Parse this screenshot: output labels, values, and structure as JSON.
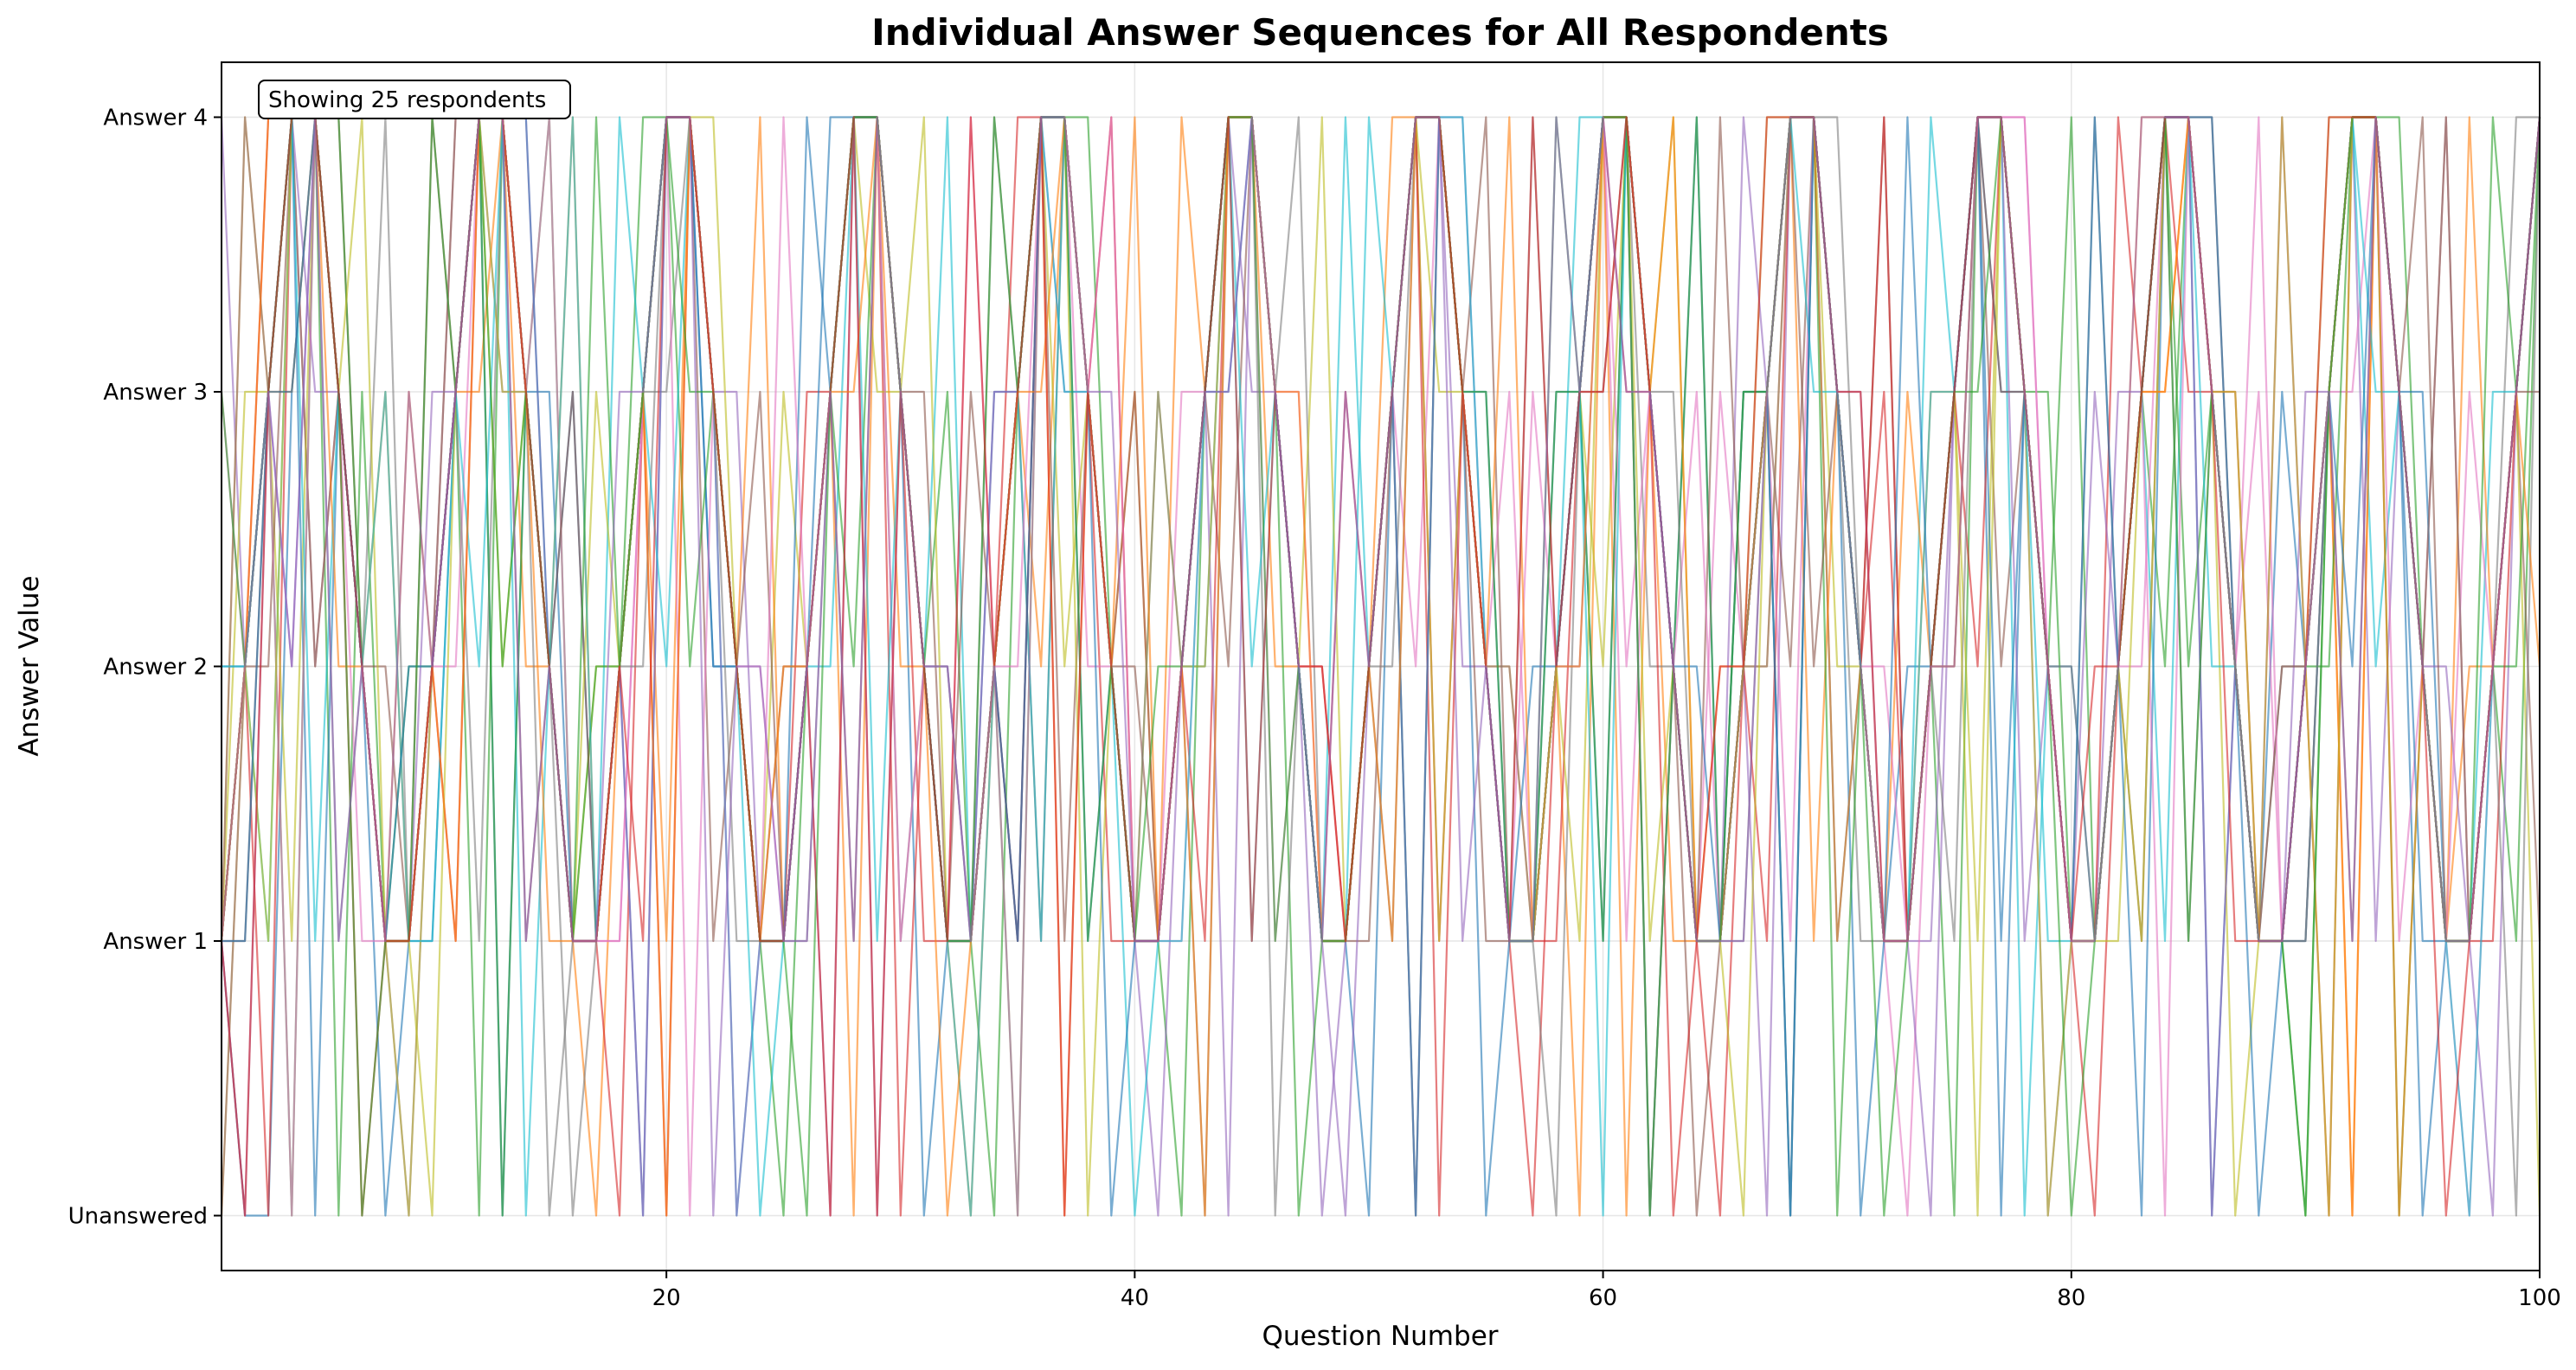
{
  "chart_data": {
    "type": "line",
    "title": "Individual Answer Sequences for All Respondents",
    "xlabel": "Question Number",
    "ylabel": "Answer Value",
    "xlim": [
      1,
      100
    ],
    "ylim": [
      -0.2,
      4.2
    ],
    "x_ticks": [
      20,
      40,
      60,
      80,
      100
    ],
    "y_ticks": [
      {
        "value": 0,
        "label": "Unanswered"
      },
      {
        "value": 1,
        "label": "Answer 1"
      },
      {
        "value": 2,
        "label": "Answer 2"
      },
      {
        "value": 3,
        "label": "Answer 3"
      },
      {
        "value": 4,
        "label": "Answer 4"
      }
    ],
    "grid": true,
    "annotation": "Showing 25 respondents",
    "series_count": 25,
    "shared_pattern": [
      1,
      2,
      3,
      4,
      4,
      3,
      2,
      1,
      1,
      2,
      3,
      4,
      4,
      3,
      2,
      1,
      1,
      2,
      3,
      4,
      4,
      3,
      2,
      1,
      1,
      2,
      3,
      4,
      4,
      3,
      2,
      1,
      1,
      2,
      3,
      4,
      4,
      3,
      2,
      1,
      1,
      2,
      3,
      4,
      4,
      3,
      2,
      1,
      1,
      2,
      3,
      4,
      4,
      3,
      2,
      1,
      1,
      2,
      3,
      4,
      4,
      3,
      2,
      1,
      1,
      2,
      3,
      4,
      4,
      3,
      2,
      1,
      1,
      2,
      3,
      4,
      4,
      3,
      2,
      1,
      1,
      2,
      3,
      4,
      4,
      3,
      2,
      1,
      1,
      2,
      3,
      4,
      4,
      3,
      2,
      1,
      1,
      2,
      3,
      4
    ],
    "series_overrides": [
      {
        "x": [
          2,
          3,
          4,
          8,
          10,
          13,
          16,
          22,
          31,
          35,
          43,
          50,
          55,
          60,
          64,
          70,
          73,
          77,
          80,
          86,
          89,
          95
        ],
        "y": [
          0,
          0,
          3,
          0,
          1,
          0,
          3,
          2,
          0,
          1,
          2,
          0,
          3,
          1,
          4,
          1,
          2,
          0,
          2,
          0,
          3,
          0
        ]
      },
      {
        "x": [
          1,
          4,
          5,
          9,
          14,
          17,
          21,
          28,
          33,
          36,
          40,
          46,
          51,
          56,
          59,
          63,
          67,
          71,
          74,
          78,
          83,
          88,
          92,
          97
        ],
        "y": [
          0,
          3,
          4,
          3,
          2,
          0,
          4,
          0,
          1,
          2,
          3,
          3,
          4,
          2,
          0,
          1,
          2,
          2,
          3,
          3,
          4,
          1,
          0,
          2
        ]
      },
      {
        "x": [
          2,
          6,
          7,
          12,
          15,
          19,
          24,
          29,
          34,
          38,
          42,
          47,
          52,
          58,
          62,
          66,
          69,
          75,
          79,
          84,
          90,
          94,
          99
        ],
        "y": [
          2,
          0,
          3,
          0,
          4,
          4,
          1,
          4,
          0,
          4,
          0,
          2,
          0,
          4,
          0,
          3,
          4,
          0,
          3,
          2,
          0,
          4,
          1
        ]
      },
      {
        "x": [
          3,
          5,
          8,
          11,
          18,
          20,
          26,
          30,
          35,
          39,
          44,
          49,
          53,
          57,
          61,
          65,
          68,
          72,
          76,
          81,
          85,
          91,
          96
        ],
        "y": [
          0,
          2,
          1,
          4,
          0,
          0,
          3,
          0,
          4,
          1,
          4,
          3,
          1,
          0,
          3,
          0,
          0,
          3,
          4,
          0,
          3,
          0,
          4
        ]
      },
      {
        "x": [
          1,
          4,
          9,
          13,
          17,
          23,
          27,
          32,
          37,
          41,
          45,
          48,
          54,
          59,
          63,
          67,
          70,
          74,
          79,
          82,
          87,
          93,
          98
        ],
        "y": [
          4,
          2,
          0,
          3,
          1,
          3,
          0,
          2,
          3,
          0,
          3,
          0,
          2,
          3,
          2,
          0,
          3,
          1,
          0,
          3,
          2,
          1,
          0
        ]
      },
      {
        "x": [
          2,
          6,
          10,
          14,
          19,
          22,
          25,
          31,
          36,
          40,
          44,
          50,
          55,
          58,
          64,
          68,
          72,
          77,
          80,
          86,
          90,
          95,
          100
        ],
        "y": [
          1,
          4,
          4,
          1,
          3,
          1,
          2,
          3,
          1,
          3,
          2,
          1,
          4,
          2,
          0,
          2,
          4,
          2,
          1,
          4,
          1,
          2,
          1
        ]
      },
      {
        "x": [
          3,
          7,
          11,
          15,
          18,
          24,
          28,
          33,
          38,
          42,
          46,
          52,
          56,
          61,
          65,
          69,
          73,
          78,
          83,
          88,
          92,
          97
        ],
        "y": [
          3,
          1,
          2,
          4,
          1,
          2,
          4,
          4,
          2,
          1,
          1,
          2,
          3,
          1,
          3,
          4,
          0,
          4,
          2,
          3,
          3,
          0
        ]
      },
      {
        "x": [
          1,
          5,
          8,
          12,
          16,
          20,
          26,
          30,
          34,
          39,
          43,
          47,
          51,
          57,
          62,
          66,
          71,
          75,
          81,
          85,
          89,
          94,
          99
        ],
        "y": [
          0,
          2,
          4,
          1,
          0,
          3,
          1,
          1,
          4,
          2,
          0,
          4,
          2,
          4,
          2,
          1,
          1,
          2,
          4,
          1,
          2,
          3,
          4
        ]
      },
      {
        "x": [
          2,
          4,
          9,
          13,
          17,
          21,
          25,
          29,
          35,
          37,
          41,
          48,
          53,
          60,
          63,
          67,
          70,
          76,
          82,
          87,
          91,
          96,
          100
        ],
        "y": [
          3,
          1,
          0,
          2,
          2,
          4,
          3,
          3,
          0,
          2,
          3,
          1,
          1,
          2,
          4,
          4,
          2,
          1,
          1,
          0,
          4,
          1,
          0
        ]
      },
      {
        "x": [
          3,
          6,
          10,
          14,
          18,
          23,
          27,
          32,
          36,
          40,
          45,
          49,
          54,
          59,
          64,
          68,
          74,
          78,
          84,
          89,
          93,
          98
        ],
        "y": [
          1,
          3,
          1,
          0,
          4,
          0,
          2,
          4,
          1,
          0,
          1,
          4,
          3,
          4,
          1,
          0,
          4,
          0,
          1,
          4,
          2,
          3
        ]
      },
      {
        "x": [
          1,
          5,
          7,
          11,
          15,
          19,
          22,
          26,
          31,
          34,
          38,
          44,
          50,
          55,
          58,
          62,
          66,
          71,
          77,
          83,
          86,
          90,
          95
        ],
        "y": [
          2,
          0,
          2,
          3,
          3,
          0,
          2,
          4,
          2,
          3,
          1,
          3,
          2,
          0,
          3,
          3,
          3,
          0,
          3,
          0,
          4,
          1,
          3
        ]
      },
      {
        "x": [
          2,
          8,
          12,
          16,
          20,
          24,
          30,
          33,
          37,
          42,
          46,
          52,
          57,
          61,
          65,
          69,
          73,
          79,
          84,
          88,
          92,
          97
        ],
        "y": [
          4,
          3,
          3,
          4,
          1,
          4,
          2,
          0,
          0,
          4,
          2,
          4,
          1,
          0,
          2,
          1,
          3,
          2,
          3,
          1,
          0,
          4
        ]
      },
      {
        "x": [
          4,
          6,
          9,
          13,
          17,
          21,
          25,
          28,
          32,
          36,
          41,
          47,
          51,
          56,
          60,
          64,
          70,
          75,
          80,
          85,
          91,
          94,
          99
        ],
        "y": [
          0,
          4,
          2,
          0,
          2,
          2,
          0,
          2,
          3,
          4,
          1,
          0,
          3,
          1,
          1,
          4,
          0,
          3,
          4,
          2,
          2,
          0,
          2
        ]
      },
      {
        "x": [
          1,
          3,
          7,
          11,
          14,
          18,
          22,
          27,
          31,
          35,
          39,
          43,
          48,
          53,
          58,
          63,
          67,
          72,
          76,
          82,
          87,
          93,
          98
        ],
        "y": [
          1,
          4,
          0,
          1,
          3,
          2,
          3,
          0,
          1,
          1,
          4,
          1,
          2,
          0,
          1,
          0,
          1,
          4,
          2,
          4,
          3,
          4,
          1
        ]
      },
      {
        "x": [
          2,
          5,
          10,
          15,
          19,
          23,
          26,
          29,
          34,
          38,
          44,
          49,
          54,
          59,
          62,
          66,
          71,
          74,
          78,
          81,
          86,
          90,
          96
        ],
        "y": [
          0,
          3,
          3,
          2,
          0,
          0,
          1,
          0,
          3,
          3,
          0,
          0,
          4,
          2,
          0,
          4,
          3,
          0,
          1,
          3,
          0,
          3,
          2
        ]
      },
      {
        "x": [
          3,
          8,
          12,
          16,
          20,
          24,
          28,
          33,
          37,
          40,
          45,
          50,
          55,
          60,
          65,
          69,
          73,
          77,
          83,
          89,
          92,
          95,
          100
        ],
        "y": [
          2,
          2,
          4,
          3,
          4,
          3,
          1,
          3,
          1,
          2,
          4,
          2,
          1,
          3,
          4,
          2,
          1,
          3,
          1,
          2,
          1,
          4,
          3
        ]
      },
      {
        "x": [
          1,
          4,
          9,
          14,
          18,
          21,
          25,
          30,
          35,
          39,
          42,
          47,
          52,
          57,
          61,
          64,
          68,
          72,
          78,
          84,
          88,
          94,
          97
        ],
        "y": [
          3,
          0,
          1,
          4,
          1,
          0,
          4,
          1,
          2,
          4,
          3,
          3,
          0,
          3,
          2,
          3,
          1,
          2,
          4,
          0,
          4,
          1,
          3
        ]
      },
      {
        "x": [
          2,
          6,
          11,
          15,
          19,
          23,
          27,
          32,
          36,
          41,
          46,
          51,
          56,
          58,
          63,
          67,
          70,
          75,
          80,
          85,
          90,
          96,
          99
        ],
        "y": [
          4,
          1,
          4,
          0,
          2,
          1,
          3,
          2,
          4,
          3,
          0,
          1,
          2,
          0,
          3,
          2,
          4,
          1,
          2,
          4,
          1,
          4,
          0
        ]
      },
      {
        "x": [
          3,
          7,
          10,
          13,
          17,
          22,
          26,
          31,
          34,
          38,
          43,
          48,
          53,
          59,
          62,
          66,
          71,
          76,
          79,
          83,
          87,
          91,
          98
        ],
        "y": [
          1,
          4,
          0,
          3,
          3,
          4,
          2,
          4,
          2,
          0,
          2,
          4,
          3,
          1,
          1,
          0,
          2,
          0,
          0,
          1,
          3,
          0,
          2
        ]
      },
      {
        "x": [
          1,
          5,
          8,
          12,
          16,
          20,
          24,
          29,
          33,
          37,
          42,
          45,
          50,
          54,
          60,
          65,
          69,
          74,
          79,
          82,
          86,
          93,
          97
        ],
        "y": [
          2,
          1,
          3,
          2,
          4,
          2,
          0,
          1,
          0,
          3,
          1,
          2,
          4,
          4,
          0,
          1,
          3,
          3,
          1,
          2,
          2,
          3,
          0
        ]
      },
      {
        "x": [
          2,
          4,
          9,
          14,
          18,
          22,
          27,
          30,
          35,
          39,
          44,
          49,
          52,
          57,
          61,
          64,
          68,
          73,
          77,
          81,
          88,
          92,
          95
        ],
        "y": [
          1,
          3,
          2,
          4,
          2,
          3,
          4,
          3,
          1,
          0,
          4,
          1,
          0,
          2,
          4,
          2,
          0,
          4,
          1,
          4,
          0,
          2,
          1
        ]
      },
      {
        "x": [
          3,
          6,
          11,
          15,
          20,
          25,
          28,
          32,
          36,
          40,
          43,
          47,
          51,
          56,
          59,
          63,
          70,
          75,
          78,
          84,
          89,
          94,
          100
        ],
        "y": [
          4,
          2,
          1,
          1,
          0,
          2,
          3,
          0,
          3,
          4,
          0,
          3,
          1,
          4,
          2,
          4,
          1,
          2,
          3,
          3,
          4,
          0,
          2
        ]
      },
      {
        "x": [
          1,
          7,
          10,
          13,
          17,
          21,
          26,
          31,
          34,
          38,
          41,
          46,
          55,
          58,
          62,
          66,
          72,
          76,
          80,
          85,
          90,
          95,
          98
        ],
        "y": [
          3,
          0,
          4,
          2,
          4,
          3,
          0,
          2,
          4,
          1,
          2,
          1,
          3,
          3,
          0,
          3,
          0,
          3,
          0,
          1,
          0,
          2,
          4
        ]
      },
      {
        "x": [
          2,
          5,
          8,
          12,
          16,
          19,
          23,
          29,
          33,
          37,
          45,
          48,
          53,
          57,
          60,
          65,
          67,
          71,
          77,
          81,
          87,
          91,
          96
        ],
        "y": [
          0,
          4,
          1,
          4,
          1,
          1,
          2,
          0,
          4,
          0,
          1,
          2,
          4,
          4,
          3,
          2,
          4,
          3,
          4,
          2,
          1,
          4,
          0
        ]
      },
      {
        "x": [
          4,
          6,
          9,
          14,
          18,
          22,
          24,
          28,
          32,
          35,
          39,
          44,
          49,
          54,
          58,
          61,
          66,
          72,
          75,
          83,
          86,
          92,
          99
        ],
        "y": [
          2,
          1,
          3,
          1,
          3,
          0,
          2,
          1,
          2,
          0,
          3,
          3,
          3,
          1,
          4,
          3,
          1,
          1,
          2,
          4,
          3,
          1,
          3
        ]
      }
    ],
    "colors": [
      "#1f77b4",
      "#ff7f0e",
      "#2ca02c",
      "#d62728",
      "#9467bd",
      "#8c564b",
      "#e377c2",
      "#7f7f7f",
      "#bcbd22",
      "#17becf"
    ]
  }
}
